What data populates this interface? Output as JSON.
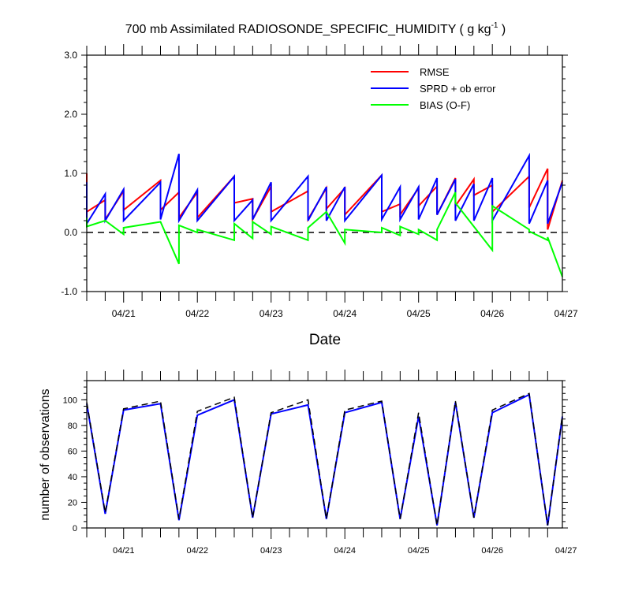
{
  "chart_data": [
    {
      "type": "line",
      "title": "700 mb Assimilated RADIOSONDE_SPECIFIC_HUMIDITY ( g kg",
      "title_exponent": "-1",
      "title_suffix": " )",
      "xlabel": "Date",
      "ylabel": "",
      "xlim": [
        0,
        6.45
      ],
      "ylim": [
        -1.0,
        3.0
      ],
      "ytick_values": [
        -1.0,
        0.0,
        1.0,
        2.0,
        3.0
      ],
      "ytick_labels": [
        "-1.0",
        "0.0",
        "1.0",
        "2.0",
        "3.0"
      ],
      "xtick_positions": [
        0.5,
        1.5,
        2.5,
        3.5,
        4.5,
        5.5,
        6.5
      ],
      "xtick_labels": [
        "04/21",
        "04/22",
        "04/23",
        "04/24",
        "04/25",
        "04/26",
        "04/27"
      ],
      "zero_line": 0.0,
      "legend_position": "top-right",
      "series": [
        {
          "name": "RMSE",
          "color": "#ff0000",
          "x": [
            0,
            0,
            0.25,
            0.25,
            0.5,
            0.5,
            1.0,
            1.0,
            1.25,
            1.25,
            1.5,
            1.5,
            2.0,
            2.0,
            2.25,
            2.25,
            2.5,
            2.5,
            3.0,
            3.0,
            3.25,
            3.25,
            3.5,
            3.5,
            4.0,
            4.0,
            4.25,
            4.25,
            4.5,
            4.5,
            4.75,
            4.75,
            5.0,
            5.0,
            5.25,
            5.25,
            5.5,
            5.5,
            6.0,
            6.0,
            6.25,
            6.25,
            6.45
          ],
          "y": [
            1.0,
            0.35,
            0.55,
            0.22,
            0.7,
            0.38,
            0.88,
            0.38,
            0.68,
            0.25,
            0.68,
            0.25,
            0.95,
            0.5,
            0.57,
            0.22,
            0.78,
            0.35,
            0.7,
            0.22,
            0.75,
            0.4,
            0.75,
            0.3,
            0.97,
            0.35,
            0.48,
            0.3,
            0.75,
            0.45,
            0.78,
            0.3,
            0.92,
            0.45,
            0.9,
            0.63,
            0.8,
            0.35,
            0.95,
            0.42,
            1.08,
            0.05,
            0.88
          ]
        },
        {
          "name": "SPRD + ob error",
          "color": "#0000ff",
          "x": [
            0,
            0,
            0.25,
            0.25,
            0.5,
            0.5,
            1.0,
            1.0,
            1.25,
            1.25,
            1.5,
            1.5,
            2.0,
            2.0,
            2.25,
            2.25,
            2.5,
            2.5,
            3.0,
            3.0,
            3.25,
            3.25,
            3.5,
            3.5,
            4.0,
            4.0,
            4.25,
            4.25,
            4.5,
            4.5,
            4.75,
            4.75,
            5.0,
            5.0,
            5.25,
            5.25,
            5.5,
            5.5,
            6.0,
            6.0,
            6.25,
            6.25,
            6.45
          ],
          "y": [
            0.85,
            0.15,
            0.65,
            0.2,
            0.73,
            0.2,
            0.85,
            0.22,
            1.33,
            0.2,
            0.72,
            0.2,
            0.95,
            0.2,
            0.55,
            0.22,
            0.85,
            0.2,
            0.95,
            0.2,
            0.77,
            0.2,
            0.77,
            0.2,
            0.97,
            0.22,
            0.77,
            0.22,
            0.77,
            0.22,
            0.92,
            0.3,
            0.9,
            0.2,
            0.82,
            0.2,
            0.92,
            0.2,
            1.3,
            0.15,
            0.88,
            0.15,
            0.85
          ]
        },
        {
          "name": "BIAS (O-F)",
          "color": "#00ff00",
          "x": [
            0,
            0,
            0.25,
            0.25,
            0.5,
            0.5,
            1.0,
            1.0,
            1.25,
            1.25,
            1.5,
            1.5,
            2.0,
            2.0,
            2.25,
            2.25,
            2.5,
            2.5,
            3.0,
            3.0,
            3.25,
            3.25,
            3.5,
            3.5,
            4.0,
            4.0,
            4.25,
            4.25,
            4.5,
            4.5,
            4.75,
            4.75,
            5.0,
            5.0,
            5.25,
            5.25,
            5.5,
            5.5,
            6.0,
            6.0,
            6.25,
            6.25,
            6.45
          ],
          "y": [
            0.25,
            0.1,
            0.2,
            0.2,
            -0.03,
            0.08,
            0.18,
            0.18,
            -0.53,
            0.12,
            0.0,
            0.05,
            -0.13,
            0.15,
            -0.1,
            0.18,
            -0.03,
            0.1,
            -0.13,
            0.08,
            0.35,
            0.35,
            -0.18,
            0.05,
            0.0,
            0.08,
            -0.05,
            0.1,
            -0.03,
            0.05,
            -0.13,
            0.05,
            0.68,
            0.5,
            0.1,
            0.1,
            -0.3,
            0.45,
            0.05,
            0.02,
            -0.13,
            -0.08,
            -0.75
          ]
        }
      ]
    },
    {
      "type": "line",
      "title": "",
      "xlabel": "",
      "ylabel": "number of observations",
      "xlim": [
        0,
        6.45
      ],
      "ylim": [
        0,
        115
      ],
      "ytick_values": [
        0,
        20,
        40,
        60,
        80,
        100
      ],
      "ytick_labels": [
        "0",
        "20",
        "40",
        "60",
        "80",
        "100"
      ],
      "xtick_positions": [
        0.5,
        1.5,
        2.5,
        3.5,
        4.5,
        5.5,
        6.5
      ],
      "xtick_labels": [
        "04/21",
        "04/22",
        "04/23",
        "04/24",
        "04/25",
        "04/26",
        "04/27"
      ],
      "series": [
        {
          "color": "#0000ff",
          "style": "solid",
          "x": [
            0,
            0.25,
            0.5,
            1.0,
            1.25,
            1.5,
            2.0,
            2.25,
            2.5,
            3.0,
            3.25,
            3.5,
            4.0,
            4.25,
            4.5,
            4.75,
            5.0,
            5.25,
            5.5,
            6.0,
            6.25,
            6.45
          ],
          "y": [
            97,
            11,
            92,
            97,
            6,
            88,
            100,
            8,
            89,
            96,
            7,
            90,
            98,
            7,
            87,
            2,
            98,
            8,
            90,
            104,
            2,
            87
          ]
        },
        {
          "color": "#000000",
          "style": "dashed",
          "x": [
            0,
            0.25,
            0.5,
            1.0,
            1.25,
            1.5,
            2.0,
            2.25,
            2.5,
            3.0,
            3.25,
            3.5,
            4.0,
            4.25,
            4.5,
            4.75,
            5.0,
            5.25,
            5.5,
            6.0,
            6.25,
            6.45
          ],
          "y": [
            98,
            12,
            93,
            99,
            7,
            91,
            102,
            8,
            90,
            100,
            7,
            92,
            99,
            7,
            90,
            2,
            99,
            8,
            92,
            105,
            2,
            88
          ]
        }
      ]
    }
  ]
}
